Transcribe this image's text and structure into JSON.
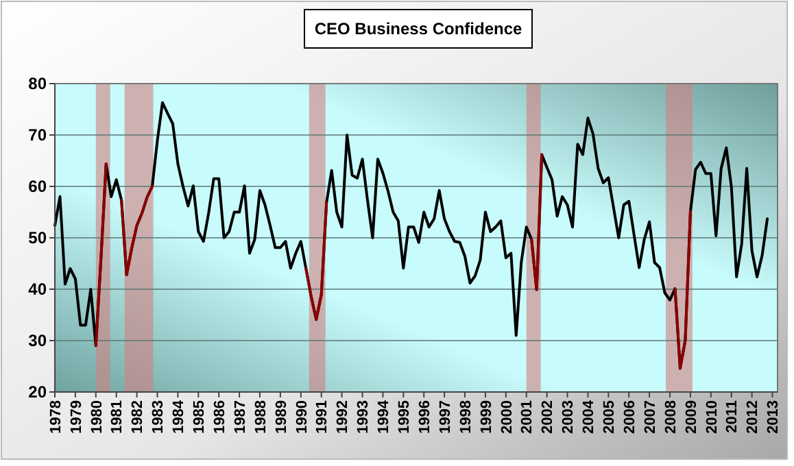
{
  "chart_data": {
    "type": "line",
    "title": "CEO Business Confidence",
    "x": [
      1978,
      1978.25,
      1978.5,
      1978.75,
      1979,
      1979.25,
      1979.5,
      1979.75,
      1980,
      1980.25,
      1980.5,
      1980.75,
      1981,
      1981.25,
      1981.5,
      1981.75,
      1982,
      1982.25,
      1982.5,
      1982.75,
      1983,
      1983.25,
      1983.5,
      1983.75,
      1984,
      1984.25,
      1984.5,
      1984.75,
      1985,
      1985.25,
      1985.5,
      1985.75,
      1986,
      1986.25,
      1986.5,
      1986.75,
      1987,
      1987.25,
      1987.5,
      1987.75,
      1988,
      1988.25,
      1988.5,
      1988.75,
      1989,
      1989.25,
      1989.5,
      1989.75,
      1990,
      1990.25,
      1990.5,
      1990.75,
      1991,
      1991.25,
      1991.5,
      1991.75,
      1992,
      1992.25,
      1992.5,
      1992.75,
      1993,
      1993.25,
      1993.5,
      1993.75,
      1994,
      1994.25,
      1994.5,
      1994.75,
      1995,
      1995.25,
      1995.5,
      1995.75,
      1996,
      1996.25,
      1996.5,
      1996.75,
      1997,
      1997.25,
      1997.5,
      1997.75,
      1998,
      1998.25,
      1998.5,
      1998.75,
      1999,
      1999.25,
      1999.5,
      1999.75,
      2000,
      2000.25,
      2000.5,
      2000.75,
      2001,
      2001.25,
      2001.5,
      2001.75,
      2002,
      2002.25,
      2002.5,
      2002.75,
      2003,
      2003.25,
      2003.5,
      2003.75,
      2004,
      2004.25,
      2004.5,
      2004.75,
      2005,
      2005.25,
      2005.5,
      2005.75,
      2006,
      2006.25,
      2006.5,
      2006.75,
      2007,
      2007.25,
      2007.5,
      2007.75,
      2008,
      2008.25,
      2008.5,
      2008.75,
      2009,
      2009.25,
      2009.5,
      2009.75,
      2010,
      2010.25,
      2010.5,
      2010.75,
      2011,
      2011.25,
      2011.5,
      2011.75,
      2012,
      2012.25,
      2012.5,
      2012.75
    ],
    "series": [
      {
        "color": "#000000",
        "values": [
          52.4,
          58,
          41,
          44,
          42,
          33,
          33,
          40,
          29,
          46,
          64.4,
          58,
          61.3,
          57.3,
          42.8,
          48,
          52.4,
          54.8,
          57.9,
          60,
          68.9,
          76.3,
          74.2,
          72.2,
          64.4,
          60,
          56.2,
          60.1,
          51.2,
          49.3,
          54.8,
          61.5,
          61.5,
          50,
          51.2,
          55,
          55,
          60.1,
          47,
          49.7,
          59.2,
          56.4,
          52.4,
          48.1,
          48.1,
          49.3,
          44.1,
          47,
          49.3,
          44,
          38.6,
          34.1,
          39,
          56.8,
          63.1,
          55,
          52.1,
          70,
          62.2,
          61.6,
          65.3,
          57.3,
          50,
          65.3,
          62.6,
          59.1,
          55,
          53.3,
          44.1,
          52.1,
          52.1,
          49.1,
          55,
          52.1,
          53.7,
          59.2,
          53.7,
          51.2,
          49.3,
          49.1,
          46.4,
          41.2,
          42.6,
          45.7,
          55,
          51.2,
          52.1,
          53.3,
          46.1,
          47,
          31,
          45.2,
          52.1,
          49.7,
          39.9,
          66.2,
          63.7,
          61.3,
          54.2,
          58,
          56.4,
          52.1,
          68.2,
          66.2,
          73.3,
          70.2,
          63.5,
          60.7,
          61.7,
          55.9,
          50,
          56.4,
          57.1,
          50.6,
          44.2,
          49.7,
          53.1,
          45.2,
          44.2,
          39.3,
          37.9,
          40.1,
          24.6,
          30.1,
          55.1,
          63.3,
          64.7,
          62.5,
          62.5,
          50.4,
          63.5,
          67.5,
          59.9,
          42.4,
          48.8,
          63.5,
          47.5,
          42.4,
          46.6,
          53.7
        ]
      },
      {
        "color": "#8b0000",
        "values": [
          null,
          null,
          null,
          null,
          null,
          null,
          null,
          null,
          29,
          46,
          64.4,
          null,
          null,
          57.3,
          42.8,
          48,
          52.4,
          54.8,
          57.9,
          60,
          null,
          null,
          null,
          null,
          null,
          null,
          null,
          null,
          null,
          null,
          null,
          null,
          null,
          null,
          null,
          null,
          null,
          null,
          null,
          null,
          null,
          null,
          null,
          null,
          null,
          null,
          null,
          null,
          null,
          44,
          38.6,
          34.1,
          39,
          56.8,
          null,
          null,
          null,
          null,
          null,
          null,
          null,
          null,
          null,
          null,
          null,
          null,
          null,
          null,
          null,
          null,
          null,
          null,
          null,
          null,
          null,
          null,
          null,
          null,
          null,
          null,
          null,
          null,
          null,
          null,
          null,
          null,
          null,
          null,
          null,
          null,
          null,
          null,
          null,
          49.7,
          39.9,
          66.2,
          null,
          null,
          null,
          null,
          null,
          null,
          null,
          null,
          null,
          null,
          null,
          null,
          null,
          null,
          null,
          null,
          null,
          null,
          null,
          null,
          null,
          null,
          null,
          null,
          null,
          40.1,
          24.6,
          30.1,
          55.1,
          null,
          null,
          null,
          null,
          null,
          null,
          null,
          null,
          null,
          null,
          null,
          null,
          null,
          null,
          null
        ]
      }
    ],
    "bands": [
      {
        "axis": "x",
        "from": 1980,
        "to": 1980.7,
        "color": "#d08080"
      },
      {
        "axis": "x",
        "from": 1981.4,
        "to": 1982.8,
        "color": "#d08080"
      },
      {
        "axis": "x",
        "from": 1990.4,
        "to": 1991.2,
        "color": "#d08080"
      },
      {
        "axis": "x",
        "from": 2001,
        "to": 2001.7,
        "color": "#d08080"
      },
      {
        "axis": "x",
        "from": 2007.8,
        "to": 2009.1,
        "color": "#d08080"
      }
    ],
    "xlim": [
      1978,
      2013.25
    ],
    "xticks": [
      1978,
      1979,
      1980,
      1981,
      1982,
      1983,
      1984,
      1985,
      1986,
      1987,
      1988,
      1989,
      1990,
      1991,
      1992,
      1993,
      1994,
      1995,
      1996,
      1997,
      1998,
      1999,
      2000,
      2001,
      2002,
      2003,
      2004,
      2005,
      2006,
      2007,
      2008,
      2009,
      2010,
      2011,
      2012,
      2013
    ],
    "ylim": [
      20,
      80
    ],
    "yticks": [
      20,
      30,
      40,
      50,
      60,
      70,
      80
    ],
    "grid": "y"
  }
}
